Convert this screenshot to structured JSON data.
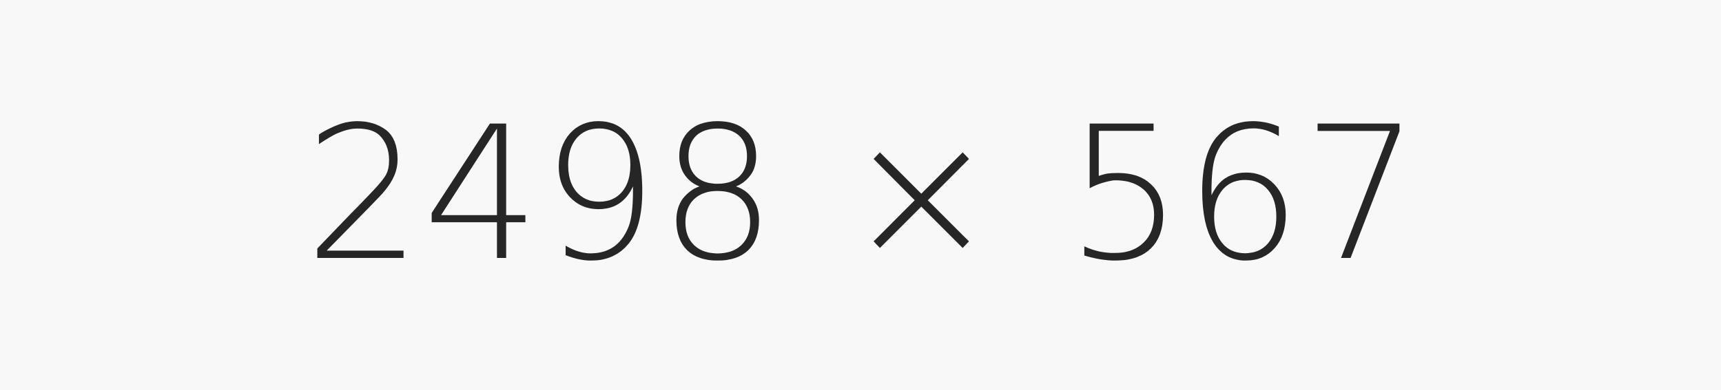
{
  "dimension_text": {
    "width_value": "2498",
    "separator": "×",
    "height_value": "567"
  },
  "colors": {
    "background": "#f8f8f8",
    "text": "#262626"
  }
}
